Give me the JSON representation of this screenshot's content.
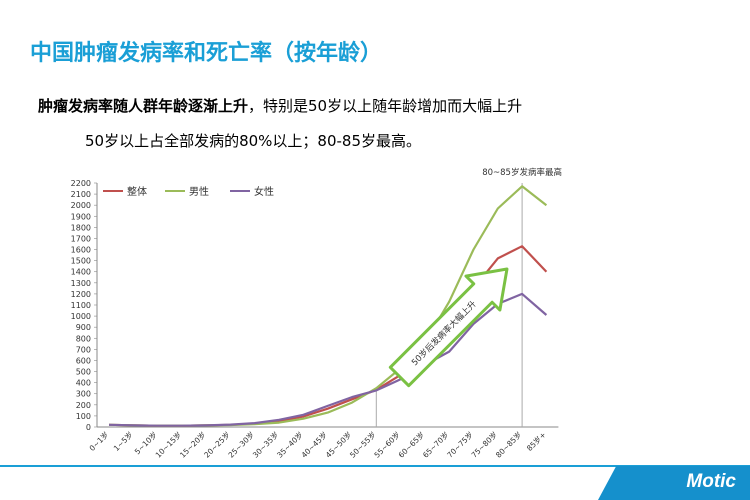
{
  "slide": {
    "title": "中国肿瘤发病率和死亡率（按年龄）",
    "line1_bold": "肿瘤发病率随人群年龄逐渐上升",
    "line1_rest": "，特别是50岁以上随年龄增加而大幅上升",
    "line2": "50岁以上占全部发病的80%以上；80-85岁最高。",
    "logo": "Motic"
  },
  "colors": {
    "overall": "#c0504d",
    "male": "#9bbb59",
    "female": "#8064a2",
    "accent": "#1a9fd6"
  },
  "chart_data": {
    "type": "line",
    "categories": [
      "0~1岁",
      "1~5岁",
      "5~10岁",
      "10~15岁",
      "15~20岁",
      "20~25岁",
      "25~30岁",
      "30~35岁",
      "35~40岁",
      "40~45岁",
      "45~50岁",
      "50~55岁",
      "55~60岁",
      "60~65岁",
      "65~70岁",
      "70~75岁",
      "75~80岁",
      "80~85岁",
      "85岁+"
    ],
    "series": [
      {
        "name": "整体",
        "key": "overall",
        "values": [
          20,
          15,
          12,
          12,
          15,
          20,
          30,
          55,
          95,
          165,
          250,
          335,
          470,
          640,
          880,
          1250,
          1520,
          1630,
          1400
        ]
      },
      {
        "name": "男性",
        "key": "male",
        "values": [
          20,
          15,
          12,
          12,
          15,
          18,
          25,
          40,
          75,
          130,
          220,
          350,
          530,
          760,
          1130,
          1600,
          1970,
          2170,
          2000
        ]
      },
      {
        "name": "女性",
        "key": "female",
        "values": [
          20,
          15,
          12,
          12,
          15,
          22,
          35,
          65,
          110,
          190,
          270,
          330,
          430,
          560,
          680,
          930,
          1110,
          1200,
          1010
        ]
      }
    ],
    "ylim": [
      0,
      2200
    ],
    "yticks": [
      0,
      100,
      200,
      300,
      400,
      500,
      600,
      700,
      800,
      900,
      1000,
      1100,
      1200,
      1300,
      1400,
      1500,
      1600,
      1700,
      1800,
      1900,
      2000,
      2100,
      2200
    ],
    "annotations": {
      "peak": "80~85岁发病率最高",
      "arrow": "50岁后发病率大幅上升"
    },
    "grid": false,
    "legend": "top-left"
  }
}
